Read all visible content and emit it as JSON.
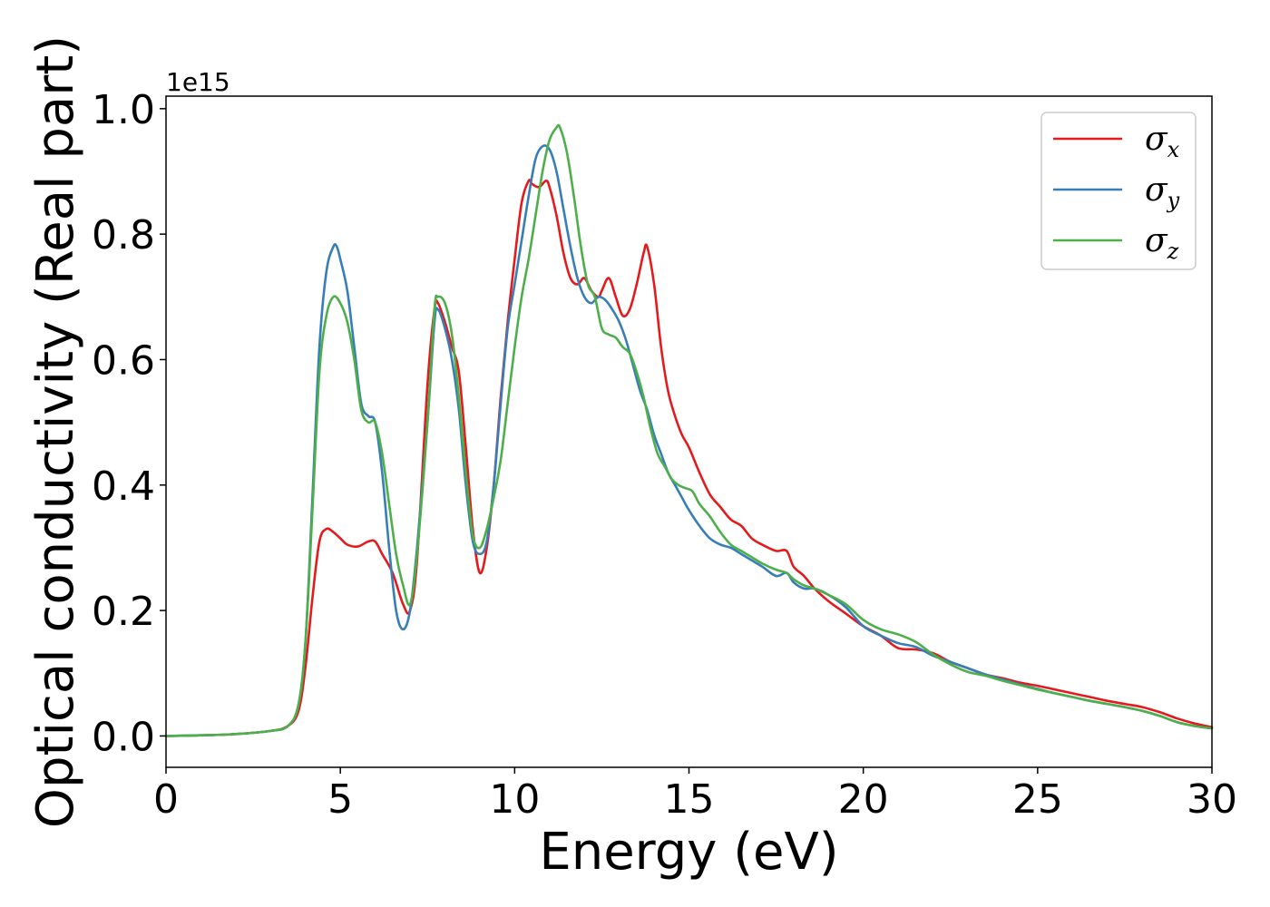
{
  "chart_data": {
    "type": "line",
    "title": "",
    "xlabel": "Energy (eV)",
    "ylabel": "Optical conductivity (Real part)",
    "y_offset_label": "1e15",
    "xlim": [
      0,
      30
    ],
    "ylim": [
      -0.05,
      1.02
    ],
    "xticks": [
      "0",
      "5",
      "10",
      "15",
      "20",
      "25",
      "30"
    ],
    "yticks": [
      "0.0",
      "0.2",
      "0.4",
      "0.6",
      "0.8",
      "1.0"
    ],
    "grid": false,
    "legend_position": "top-right",
    "series": [
      {
        "name": "σx",
        "symbol": "σ",
        "subscript": "x",
        "color": "#e41a1c",
        "x": [
          0,
          1,
          2,
          3,
          3.5,
          3.8,
          4.0,
          4.2,
          4.4,
          4.6,
          4.8,
          5.0,
          5.2,
          5.5,
          5.8,
          6.0,
          6.2,
          6.5,
          6.8,
          7.0,
          7.2,
          7.5,
          7.7,
          7.8,
          8.0,
          8.2,
          8.4,
          8.6,
          8.8,
          9.0,
          9.2,
          9.4,
          9.6,
          9.8,
          10.0,
          10.2,
          10.4,
          10.5,
          10.7,
          10.9,
          11.0,
          11.2,
          11.4,
          11.6,
          11.8,
          12.0,
          12.2,
          12.4,
          12.5,
          12.7,
          12.9,
          13.1,
          13.3,
          13.5,
          13.7,
          13.8,
          14.0,
          14.2,
          14.4,
          14.6,
          14.8,
          15.0,
          15.3,
          15.6,
          15.9,
          16.2,
          16.5,
          16.8,
          17.1,
          17.5,
          17.8,
          18.0,
          18.3,
          18.6,
          19.0,
          19.5,
          20.0,
          20.5,
          21.0,
          21.5,
          22.0,
          22.5,
          23.0,
          23.5,
          24.0,
          24.5,
          25.0,
          25.5,
          26.0,
          26.5,
          27.0,
          27.5,
          28.0,
          28.5,
          29.0,
          29.5,
          30.0
        ],
        "y": [
          0,
          0.001,
          0.003,
          0.008,
          0.016,
          0.04,
          0.11,
          0.22,
          0.31,
          0.33,
          0.325,
          0.315,
          0.305,
          0.302,
          0.31,
          0.31,
          0.29,
          0.26,
          0.21,
          0.2,
          0.28,
          0.56,
          0.68,
          0.69,
          0.66,
          0.62,
          0.58,
          0.46,
          0.33,
          0.26,
          0.3,
          0.4,
          0.54,
          0.66,
          0.76,
          0.85,
          0.885,
          0.88,
          0.875,
          0.885,
          0.875,
          0.83,
          0.77,
          0.73,
          0.72,
          0.73,
          0.71,
          0.7,
          0.71,
          0.73,
          0.7,
          0.67,
          0.68,
          0.72,
          0.77,
          0.78,
          0.72,
          0.62,
          0.55,
          0.51,
          0.48,
          0.46,
          0.42,
          0.385,
          0.365,
          0.345,
          0.335,
          0.315,
          0.305,
          0.295,
          0.295,
          0.27,
          0.255,
          0.235,
          0.215,
          0.195,
          0.175,
          0.16,
          0.14,
          0.138,
          0.132,
          0.118,
          0.108,
          0.098,
          0.092,
          0.085,
          0.08,
          0.074,
          0.068,
          0.062,
          0.056,
          0.051,
          0.046,
          0.038,
          0.028,
          0.02,
          0.014
        ]
      },
      {
        "name": "σy",
        "symbol": "σ",
        "subscript": "y",
        "color": "#377eb8",
        "x": [
          0,
          1,
          2,
          3,
          3.5,
          3.8,
          4.0,
          4.2,
          4.4,
          4.6,
          4.8,
          4.9,
          5.0,
          5.2,
          5.4,
          5.6,
          5.8,
          6.0,
          6.2,
          6.4,
          6.6,
          6.8,
          7.0,
          7.2,
          7.5,
          7.7,
          7.8,
          8.0,
          8.2,
          8.4,
          8.6,
          8.8,
          9.0,
          9.2,
          9.4,
          9.6,
          9.8,
          10.0,
          10.2,
          10.4,
          10.6,
          10.8,
          11.0,
          11.2,
          11.4,
          11.6,
          11.8,
          12.0,
          12.2,
          12.4,
          12.6,
          12.8,
          13.0,
          13.2,
          13.4,
          13.6,
          13.8,
          14.0,
          14.2,
          14.4,
          14.6,
          14.8,
          15.0,
          15.3,
          15.6,
          15.9,
          16.2,
          16.5,
          16.8,
          17.1,
          17.5,
          17.8,
          18.0,
          18.3,
          18.6,
          19.0,
          19.5,
          20.0,
          20.5,
          21.0,
          21.5,
          22.0,
          22.5,
          23.0,
          23.5,
          24.0,
          24.5,
          25.0,
          25.5,
          26.0,
          26.5,
          27.0,
          27.5,
          28.0,
          28.5,
          29.0,
          29.5,
          30.0
        ],
        "y": [
          0,
          0.001,
          0.003,
          0.008,
          0.016,
          0.05,
          0.15,
          0.38,
          0.62,
          0.74,
          0.78,
          0.78,
          0.76,
          0.71,
          0.62,
          0.53,
          0.51,
          0.5,
          0.42,
          0.3,
          0.2,
          0.17,
          0.2,
          0.3,
          0.5,
          0.66,
          0.68,
          0.65,
          0.6,
          0.52,
          0.4,
          0.31,
          0.29,
          0.31,
          0.4,
          0.53,
          0.65,
          0.72,
          0.79,
          0.86,
          0.92,
          0.94,
          0.935,
          0.9,
          0.84,
          0.78,
          0.73,
          0.7,
          0.69,
          0.7,
          0.695,
          0.68,
          0.66,
          0.63,
          0.59,
          0.55,
          0.52,
          0.48,
          0.45,
          0.42,
          0.4,
          0.38,
          0.36,
          0.335,
          0.315,
          0.305,
          0.3,
          0.29,
          0.28,
          0.27,
          0.255,
          0.26,
          0.245,
          0.235,
          0.235,
          0.225,
          0.205,
          0.175,
          0.16,
          0.148,
          0.142,
          0.128,
          0.118,
          0.108,
          0.098,
          0.09,
          0.082,
          0.075,
          0.068,
          0.062,
          0.056,
          0.051,
          0.046,
          0.04,
          0.032,
          0.022,
          0.016,
          0.012
        ]
      },
      {
        "name": "σz",
        "symbol": "σ",
        "subscript": "z",
        "color": "#4daf4a",
        "x": [
          0,
          1,
          2,
          3,
          3.5,
          3.8,
          4.0,
          4.2,
          4.4,
          4.6,
          4.8,
          5.0,
          5.2,
          5.4,
          5.6,
          5.8,
          6.0,
          6.2,
          6.4,
          6.6,
          6.8,
          7.0,
          7.2,
          7.5,
          7.7,
          7.8,
          8.0,
          8.2,
          8.4,
          8.6,
          8.8,
          9.0,
          9.2,
          9.4,
          9.6,
          9.8,
          10.0,
          10.2,
          10.4,
          10.6,
          10.8,
          11.0,
          11.2,
          11.3,
          11.5,
          11.7,
          11.9,
          12.1,
          12.3,
          12.5,
          12.7,
          12.9,
          13.1,
          13.3,
          13.5,
          13.7,
          13.9,
          14.1,
          14.3,
          14.5,
          14.7,
          14.9,
          15.1,
          15.3,
          15.6,
          15.9,
          16.2,
          16.5,
          16.8,
          17.1,
          17.5,
          17.8,
          18.0,
          18.3,
          18.6,
          19.0,
          19.5,
          20.0,
          20.5,
          21.0,
          21.5,
          22.0,
          22.5,
          23.0,
          23.5,
          24.0,
          24.5,
          25.0,
          25.5,
          26.0,
          26.5,
          27.0,
          27.5,
          28.0,
          28.5,
          29.0,
          29.5,
          30.0
        ],
        "y": [
          0,
          0.001,
          0.003,
          0.008,
          0.016,
          0.05,
          0.15,
          0.36,
          0.58,
          0.67,
          0.7,
          0.69,
          0.66,
          0.6,
          0.52,
          0.5,
          0.5,
          0.45,
          0.37,
          0.29,
          0.24,
          0.21,
          0.29,
          0.5,
          0.68,
          0.7,
          0.69,
          0.64,
          0.54,
          0.42,
          0.32,
          0.3,
          0.33,
          0.38,
          0.44,
          0.53,
          0.62,
          0.7,
          0.76,
          0.83,
          0.9,
          0.95,
          0.97,
          0.97,
          0.93,
          0.86,
          0.78,
          0.72,
          0.7,
          0.65,
          0.64,
          0.635,
          0.62,
          0.61,
          0.58,
          0.54,
          0.49,
          0.45,
          0.43,
          0.41,
          0.4,
          0.395,
          0.39,
          0.37,
          0.35,
          0.325,
          0.305,
          0.295,
          0.285,
          0.275,
          0.265,
          0.26,
          0.25,
          0.24,
          0.235,
          0.225,
          0.21,
          0.185,
          0.17,
          0.162,
          0.15,
          0.13,
          0.114,
          0.102,
          0.096,
          0.088,
          0.081,
          0.074,
          0.068,
          0.062,
          0.056,
          0.051,
          0.046,
          0.04,
          0.032,
          0.022,
          0.016,
          0.012
        ]
      }
    ]
  }
}
